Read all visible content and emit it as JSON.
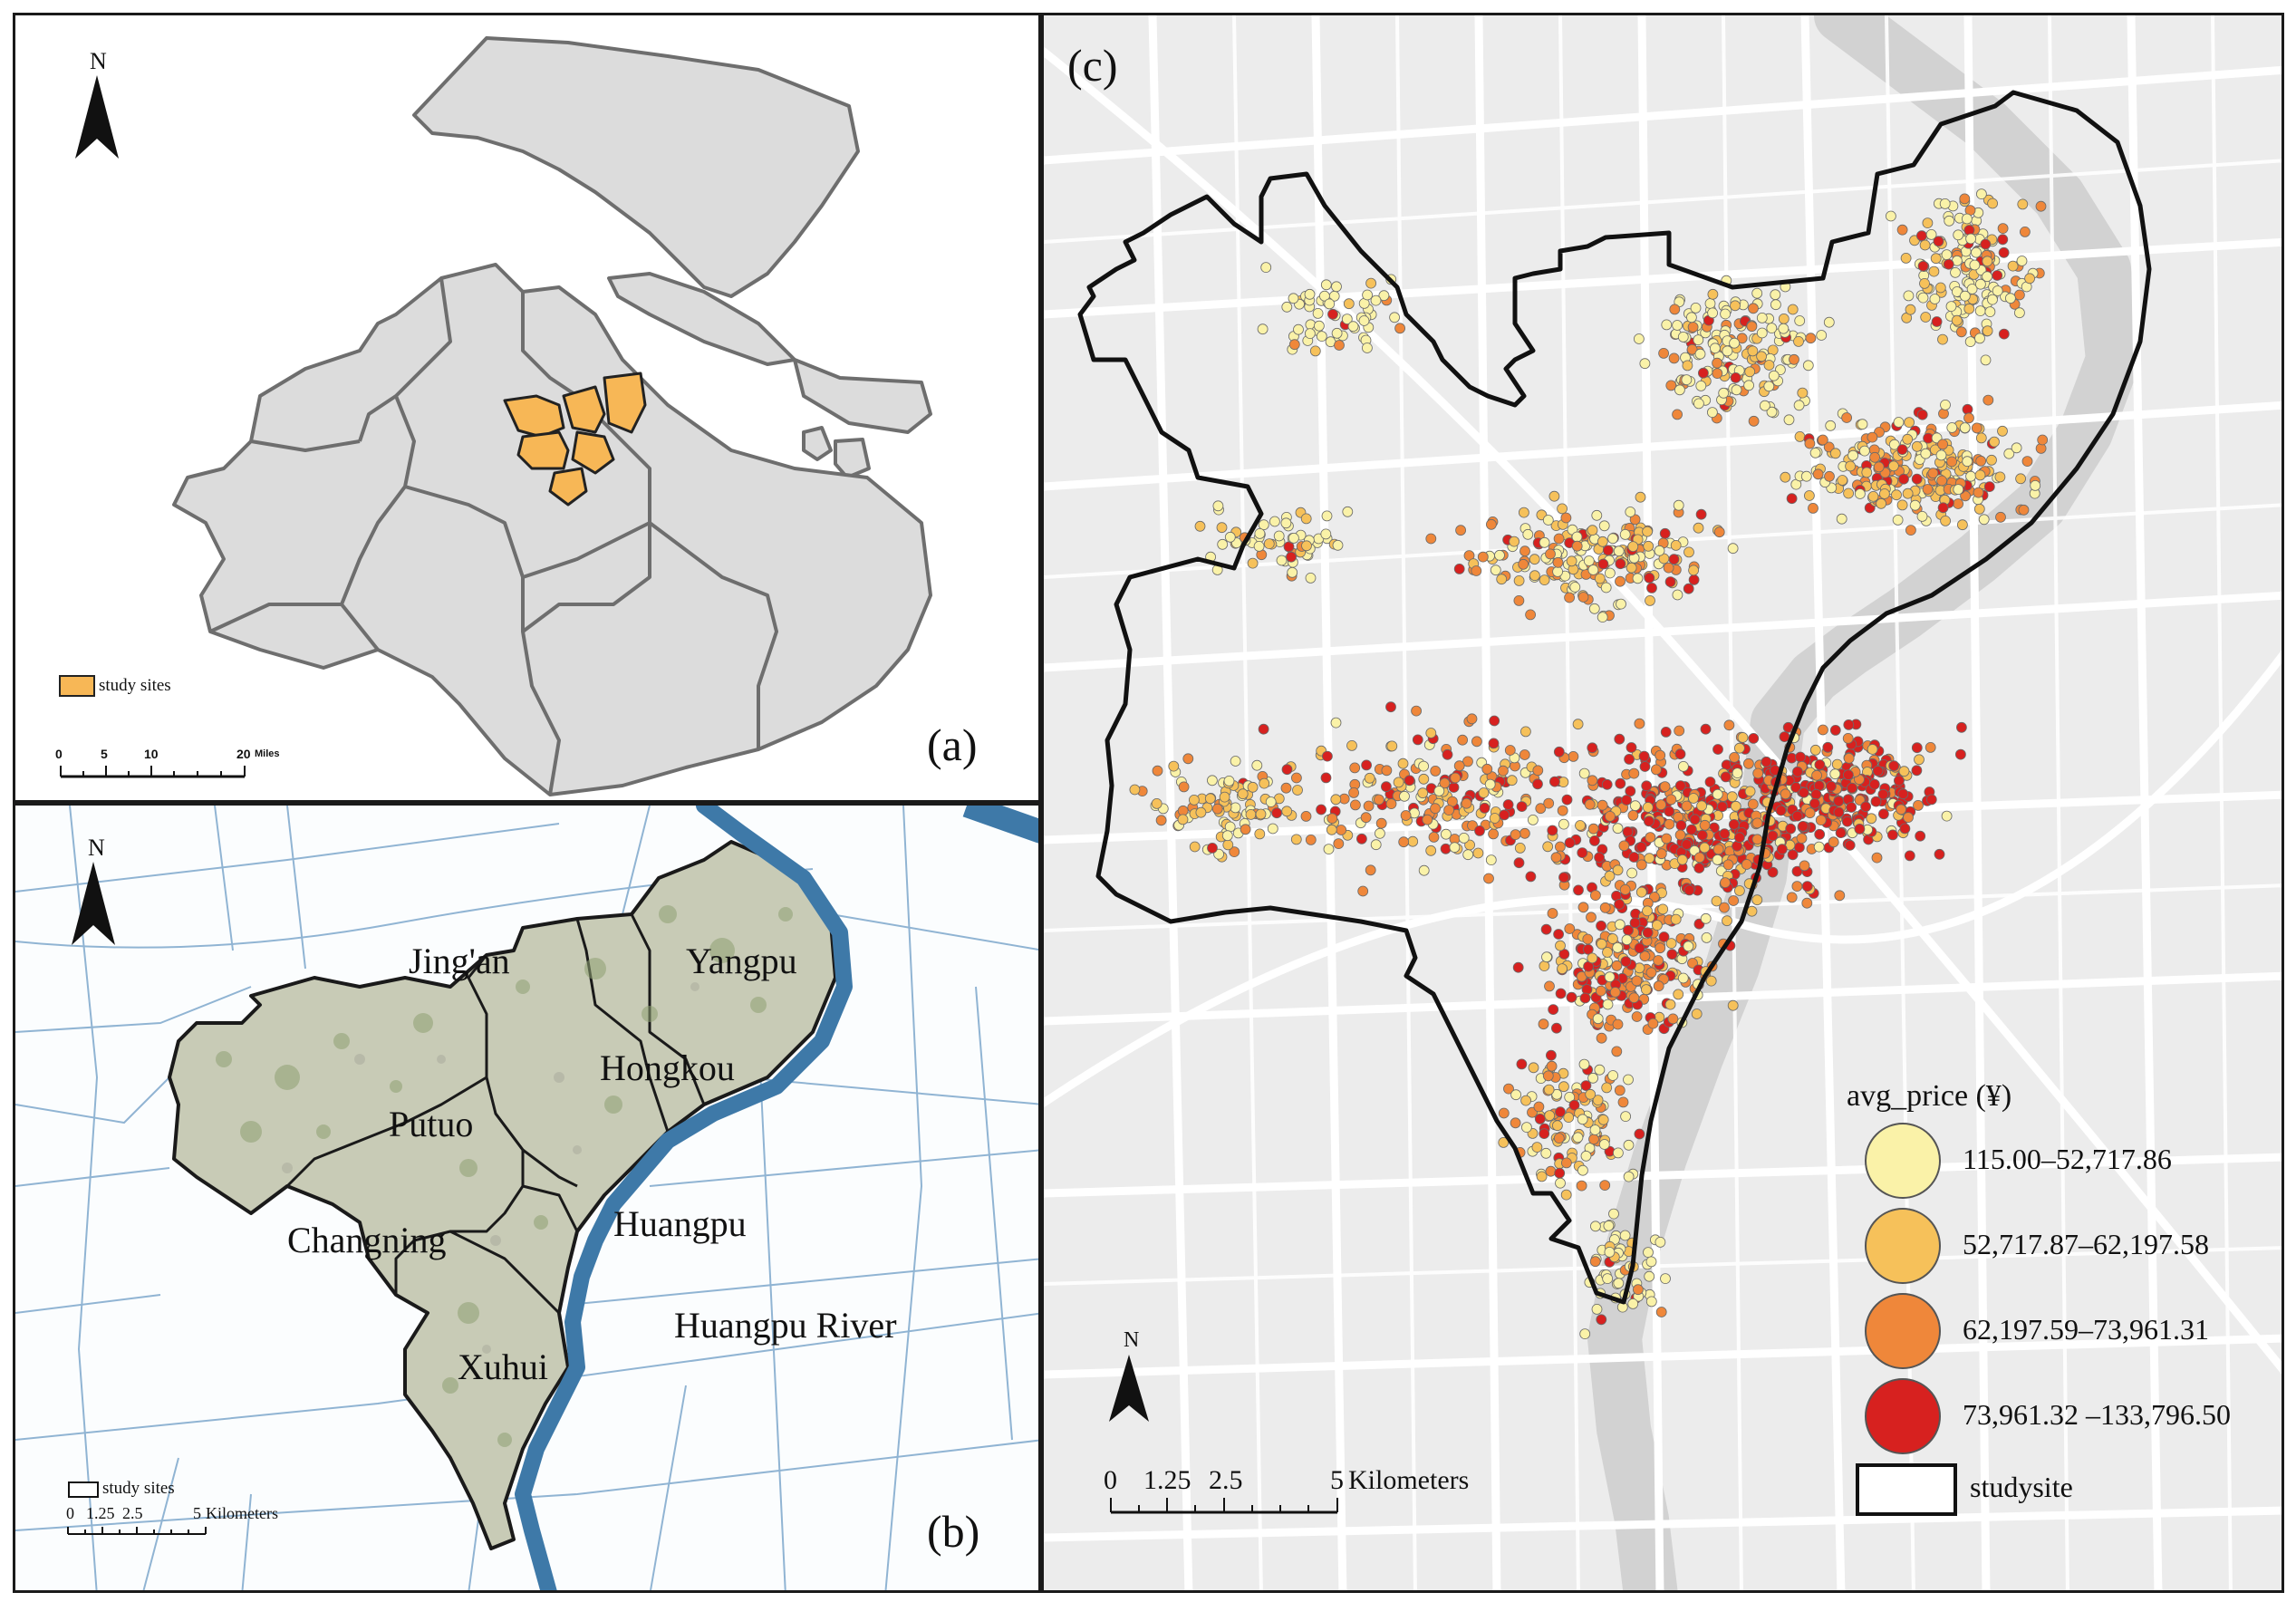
{
  "panel_a": {
    "label": "(a)",
    "north": "N",
    "legend": "study sites",
    "scale": {
      "ticks": [
        "0",
        "5",
        "10",
        "20"
      ],
      "unit": "Miles"
    },
    "colors": {
      "land": "#dcdcdc",
      "boundary": "#6e6e6e",
      "study": "#f7b756"
    }
  },
  "panel_b": {
    "label": "(b)",
    "north": "N",
    "legend": "study sites",
    "scale": {
      "ticks": [
        "0",
        "1.25",
        "2.5",
        "5"
      ],
      "unit": "Kilometers"
    },
    "districts": [
      "Jing'an",
      "Yangpu",
      "Hongkou",
      "Putuo",
      "Changning",
      "Huangpu",
      "Xuhui"
    ],
    "river": "Huangpu River",
    "colors": {
      "river": "#3e79a8",
      "imagery": "#c8cbb6",
      "water_lines": "#6d9cc5"
    }
  },
  "panel_c": {
    "label": "(c)",
    "north": "N",
    "scale": {
      "ticks": [
        "0",
        "1.25",
        "2.5",
        "5"
      ],
      "unit": "Kilometers"
    },
    "legend": {
      "title": "avg_price (¥)",
      "classes": [
        {
          "label": "115.00–52,717.86",
          "color": "#faf2a8"
        },
        {
          "label": "52,717.87–62,197.58",
          "color": "#f6c15a"
        },
        {
          "label": "62,197.59–73,961.31",
          "color": "#ef873a"
        },
        {
          "label": "73,961.32 –133,796.50",
          "color": "#d7211f"
        }
      ],
      "boundary_label": "studysite"
    },
    "colors": {
      "background": "#ececec",
      "roads": "#ffffff",
      "river": "#d2d2d2",
      "boundary": "#111111"
    }
  }
}
